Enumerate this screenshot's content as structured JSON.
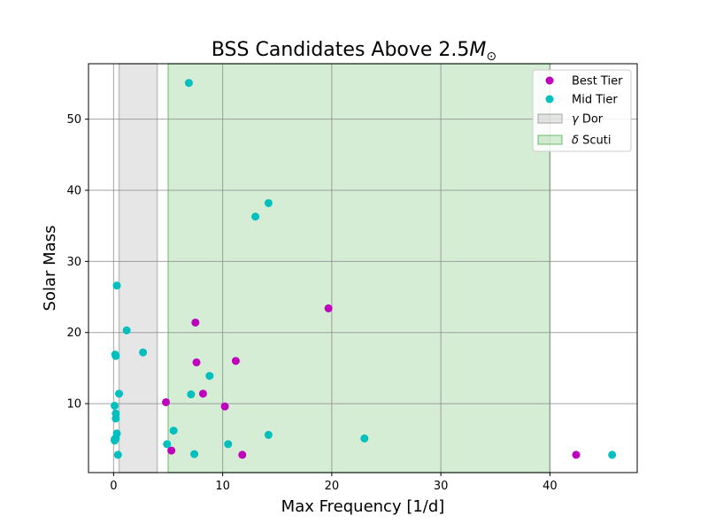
{
  "chart_data": {
    "type": "scatter",
    "title_main": "BSS Candidates Above 2.5",
    "title_symbol": "M",
    "title_subscript": "⊙",
    "xlabel": "Max Frequency [1/d]",
    "ylabel": "Solar Mass",
    "xlim": [
      -2.3,
      48
    ],
    "ylim": [
      0.3,
      57.8
    ],
    "xticks": [
      0,
      10,
      20,
      30,
      40
    ],
    "yticks": [
      10,
      20,
      30,
      40,
      50
    ],
    "grid": true,
    "legend_position": "top-right",
    "bands": [
      {
        "name": "γ Dor",
        "greek": "γ",
        "label": " Dor",
        "x0": 0.5,
        "x1": 4.0,
        "color": "#808080"
      },
      {
        "name": "δ Scuti",
        "greek": "δ",
        "label": " Scuti",
        "x0": 5.0,
        "x1": 40.0,
        "color": "#2ca02c"
      }
    ],
    "series": [
      {
        "name": "Best Tier",
        "color": "#bf00bf",
        "points": [
          [
            4.8,
            10.2
          ],
          [
            5.3,
            3.4
          ],
          [
            7.5,
            21.4
          ],
          [
            7.6,
            15.8
          ],
          [
            8.2,
            11.4
          ],
          [
            10.2,
            9.6
          ],
          [
            11.2,
            16.0
          ],
          [
            11.8,
            2.8
          ],
          [
            19.7,
            23.4
          ],
          [
            42.4,
            2.8
          ]
        ]
      },
      {
        "name": "Mid Tier",
        "color": "#00bfbf",
        "points": [
          [
            0.1,
            9.7
          ],
          [
            0.1,
            5.0
          ],
          [
            0.1,
            4.8
          ],
          [
            0.15,
            16.9
          ],
          [
            0.2,
            16.7
          ],
          [
            0.2,
            8.6
          ],
          [
            0.2,
            7.9
          ],
          [
            0.2,
            5.1
          ],
          [
            0.3,
            26.6
          ],
          [
            0.3,
            5.8
          ],
          [
            0.4,
            2.8
          ],
          [
            0.5,
            11.4
          ],
          [
            1.2,
            20.3
          ],
          [
            2.7,
            17.2
          ],
          [
            4.9,
            4.3
          ],
          [
            5.5,
            6.2
          ],
          [
            6.9,
            55.1
          ],
          [
            7.1,
            11.3
          ],
          [
            7.4,
            2.9
          ],
          [
            8.8,
            13.9
          ],
          [
            10.5,
            4.3
          ],
          [
            13.0,
            36.3
          ],
          [
            14.2,
            38.2
          ],
          [
            14.2,
            5.6
          ],
          [
            23.0,
            5.1
          ],
          [
            45.7,
            2.8
          ]
        ]
      }
    ]
  }
}
